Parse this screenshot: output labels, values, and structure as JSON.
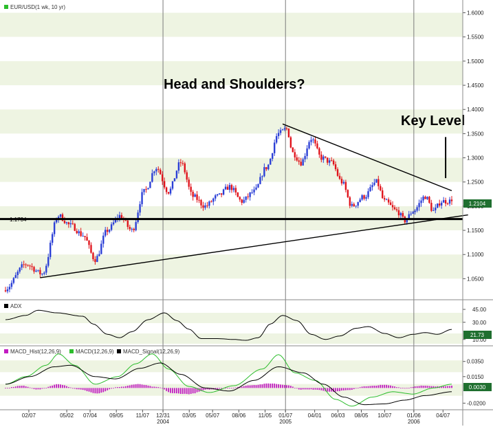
{
  "colors": {
    "up": "#2b3fd6",
    "down": "#e0141c",
    "band_light": "#eef4e2",
    "band_white": "#ffffff",
    "price_label_bg": "#1f6f2f",
    "macd_hist": "#c21bc2",
    "macd_line": "#2cbd2c",
    "macd_signal": "#000000"
  },
  "annotations": {
    "headline": "Head and Shoulders?",
    "key_level": "Key Level",
    "support_level": "1.1734"
  },
  "chart_data": [
    {
      "type": "candlestick",
      "title": "EUR/USD(1 wk, 10 yr)",
      "ylim": [
        1.015,
        1.615
      ],
      "yticks": [
        "1.6000",
        "1.5500",
        "1.5000",
        "1.4500",
        "1.4000",
        "1.3500",
        "1.3000",
        "1.2500",
        "1.2000",
        "1.1500",
        "1.1000",
        "1.0500"
      ],
      "last_value": "1.2104",
      "anchors": [
        {
          "w": 0,
          "v": 1.03
        },
        {
          "w": 10,
          "v": 1.08
        },
        {
          "w": 18,
          "v": 1.06
        },
        {
          "w": 26,
          "v": 1.18
        },
        {
          "w": 32,
          "v": 1.16
        },
        {
          "w": 38,
          "v": 1.14
        },
        {
          "w": 44,
          "v": 1.09
        },
        {
          "w": 50,
          "v": 1.15
        },
        {
          "w": 56,
          "v": 1.18
        },
        {
          "w": 62,
          "v": 1.15
        },
        {
          "w": 68,
          "v": 1.23
        },
        {
          "w": 74,
          "v": 1.28
        },
        {
          "w": 80,
          "v": 1.23
        },
        {
          "w": 86,
          "v": 1.29
        },
        {
          "w": 92,
          "v": 1.22
        },
        {
          "w": 98,
          "v": 1.2
        },
        {
          "w": 104,
          "v": 1.22
        },
        {
          "w": 110,
          "v": 1.24
        },
        {
          "w": 116,
          "v": 1.21
        },
        {
          "w": 122,
          "v": 1.23
        },
        {
          "w": 128,
          "v": 1.28
        },
        {
          "w": 134,
          "v": 1.35
        },
        {
          "w": 138,
          "v": 1.36
        },
        {
          "w": 141,
          "v": 1.31
        },
        {
          "w": 145,
          "v": 1.29
        },
        {
          "w": 150,
          "v": 1.34
        },
        {
          "w": 155,
          "v": 1.3
        },
        {
          "w": 160,
          "v": 1.29
        },
        {
          "w": 165,
          "v": 1.25
        },
        {
          "w": 170,
          "v": 1.2
        },
        {
          "w": 176,
          "v": 1.22
        },
        {
          "w": 182,
          "v": 1.25
        },
        {
          "w": 186,
          "v": 1.21
        },
        {
          "w": 192,
          "v": 1.19
        },
        {
          "w": 196,
          "v": 1.17
        },
        {
          "w": 200,
          "v": 1.19
        },
        {
          "w": 206,
          "v": 1.22
        },
        {
          "w": 210,
          "v": 1.19
        },
        {
          "w": 214,
          "v": 1.21
        },
        {
          "w": 219,
          "v": 1.2104
        }
      ],
      "lines": [
        {
          "name": "neckline",
          "points": [
            [
              -5,
              1.1734
            ],
            [
              230,
              1.1734
            ]
          ]
        },
        {
          "name": "rising-trendline",
          "points": [
            [
              17,
              1.052
            ],
            [
              227,
              1.182
            ]
          ]
        },
        {
          "name": "falling-trendline",
          "points": [
            [
              136,
              1.37
            ],
            [
              219,
              1.232
            ]
          ]
        },
        {
          "name": "key-level-marker",
          "points": [
            [
              216,
              1.258
            ],
            [
              216,
              1.343
            ]
          ]
        }
      ]
    },
    {
      "type": "line",
      "title": "ADX",
      "ylim": [
        5,
        53
      ],
      "yticks": [
        "45.00",
        "30.00",
        "10.00"
      ],
      "last_value": "21.73",
      "anchors": [
        {
          "w": 0,
          "v": 33
        },
        {
          "w": 10,
          "v": 38
        },
        {
          "w": 16,
          "v": 44
        },
        {
          "w": 25,
          "v": 41
        },
        {
          "w": 38,
          "v": 37
        },
        {
          "w": 43,
          "v": 28
        },
        {
          "w": 50,
          "v": 16
        },
        {
          "w": 56,
          "v": 12
        },
        {
          "w": 62,
          "v": 19
        },
        {
          "w": 70,
          "v": 33
        },
        {
          "w": 78,
          "v": 41
        },
        {
          "w": 84,
          "v": 32
        },
        {
          "w": 90,
          "v": 22
        },
        {
          "w": 96,
          "v": 11
        },
        {
          "w": 104,
          "v": 11
        },
        {
          "w": 112,
          "v": 10
        },
        {
          "w": 118,
          "v": 9
        },
        {
          "w": 124,
          "v": 12
        },
        {
          "w": 130,
          "v": 28
        },
        {
          "w": 136,
          "v": 38
        },
        {
          "w": 143,
          "v": 32
        },
        {
          "w": 150,
          "v": 16
        },
        {
          "w": 157,
          "v": 10
        },
        {
          "w": 164,
          "v": 14
        },
        {
          "w": 172,
          "v": 23
        },
        {
          "w": 178,
          "v": 25
        },
        {
          "w": 186,
          "v": 17
        },
        {
          "w": 193,
          "v": 12
        },
        {
          "w": 200,
          "v": 16
        },
        {
          "w": 206,
          "v": 18
        },
        {
          "w": 212,
          "v": 16
        },
        {
          "w": 219,
          "v": 21.73
        }
      ]
    },
    {
      "type": "macd",
      "ylim": [
        -0.026,
        0.052
      ],
      "yticks": [
        "0.0350",
        "0.0150",
        "-0.0200"
      ],
      "last_value": "0.0030",
      "series": [
        {
          "name": "MACD_Hist(12,26,9)",
          "kind": "histogram",
          "anchors": [
            {
              "w": 0,
              "v": 0.0
            },
            {
              "w": 8,
              "v": 0.003
            },
            {
              "w": 16,
              "v": -0.002
            },
            {
              "w": 26,
              "v": 0.005
            },
            {
              "w": 36,
              "v": -0.002
            },
            {
              "w": 45,
              "v": -0.007
            },
            {
              "w": 55,
              "v": 0.001
            },
            {
              "w": 65,
              "v": 0.005
            },
            {
              "w": 75,
              "v": 0.001
            },
            {
              "w": 82,
              "v": -0.007
            },
            {
              "w": 90,
              "v": -0.008
            },
            {
              "w": 100,
              "v": -0.002
            },
            {
              "w": 110,
              "v": 0.0
            },
            {
              "w": 122,
              "v": 0.004
            },
            {
              "w": 130,
              "v": 0.006
            },
            {
              "w": 138,
              "v": 0.004
            },
            {
              "w": 145,
              "v": -0.002
            },
            {
              "w": 152,
              "v": -0.002
            },
            {
              "w": 160,
              "v": -0.005
            },
            {
              "w": 168,
              "v": -0.003
            },
            {
              "w": 176,
              "v": 0.002
            },
            {
              "w": 186,
              "v": 0.004
            },
            {
              "w": 196,
              "v": 0.0
            },
            {
              "w": 204,
              "v": 0.003
            },
            {
              "w": 212,
              "v": 0.002
            },
            {
              "w": 219,
              "v": 0.003
            }
          ]
        },
        {
          "name": "MACD(12,26,9)",
          "kind": "line",
          "anchors": [
            {
              "w": 0,
              "v": 0.005
            },
            {
              "w": 10,
              "v": 0.015
            },
            {
              "w": 20,
              "v": 0.03
            },
            {
              "w": 26,
              "v": 0.045
            },
            {
              "w": 34,
              "v": 0.03
            },
            {
              "w": 44,
              "v": 0.005
            },
            {
              "w": 55,
              "v": 0.015
            },
            {
              "w": 64,
              "v": 0.032
            },
            {
              "w": 72,
              "v": 0.045
            },
            {
              "w": 80,
              "v": 0.025
            },
            {
              "w": 90,
              "v": 0.002
            },
            {
              "w": 100,
              "v": -0.006
            },
            {
              "w": 112,
              "v": 0.003
            },
            {
              "w": 126,
              "v": 0.025
            },
            {
              "w": 134,
              "v": 0.044
            },
            {
              "w": 142,
              "v": 0.02
            },
            {
              "w": 152,
              "v": 0.01
            },
            {
              "w": 162,
              "v": -0.015
            },
            {
              "w": 170,
              "v": -0.024
            },
            {
              "w": 180,
              "v": -0.012
            },
            {
              "w": 190,
              "v": -0.005
            },
            {
              "w": 200,
              "v": -0.008
            },
            {
              "w": 210,
              "v": 0.0
            },
            {
              "w": 219,
              "v": 0.005
            }
          ]
        },
        {
          "name": "MACD_Signal(12,26,9)",
          "kind": "line",
          "anchors": [
            {
              "w": 0,
              "v": 0.005
            },
            {
              "w": 12,
              "v": 0.015
            },
            {
              "w": 24,
              "v": 0.028
            },
            {
              "w": 32,
              "v": 0.03
            },
            {
              "w": 44,
              "v": 0.015
            },
            {
              "w": 54,
              "v": 0.012
            },
            {
              "w": 66,
              "v": 0.026
            },
            {
              "w": 76,
              "v": 0.033
            },
            {
              "w": 86,
              "v": 0.018
            },
            {
              "w": 98,
              "v": 0.0
            },
            {
              "w": 110,
              "v": -0.004
            },
            {
              "w": 122,
              "v": 0.01
            },
            {
              "w": 134,
              "v": 0.028
            },
            {
              "w": 146,
              "v": 0.02
            },
            {
              "w": 156,
              "v": 0.005
            },
            {
              "w": 166,
              "v": -0.012
            },
            {
              "w": 176,
              "v": -0.022
            },
            {
              "w": 186,
              "v": -0.021
            },
            {
              "w": 196,
              "v": -0.016
            },
            {
              "w": 206,
              "v": -0.01
            },
            {
              "w": 219,
              "v": -0.005
            }
          ]
        }
      ]
    }
  ],
  "x_axis": {
    "weeks_total": 220,
    "ticks": [
      {
        "w": 8,
        "label": "02/07"
      },
      {
        "w": 21,
        "label": "05/02"
      },
      {
        "w": 29,
        "label": "07/04"
      },
      {
        "w": 38,
        "label": "09/05"
      },
      {
        "w": 47,
        "label": "11/07"
      },
      {
        "w": 54,
        "label": "12/31",
        "sub": "2004"
      },
      {
        "w": 63,
        "label": "03/05"
      },
      {
        "w": 71,
        "label": "05/07"
      },
      {
        "w": 80,
        "label": "08/06"
      },
      {
        "w": 89,
        "label": "11/05"
      },
      {
        "w": 96,
        "label": "01/07",
        "sub": "2005"
      },
      {
        "w": 106,
        "label": "04/01"
      },
      {
        "w": 114,
        "label": "06/03"
      },
      {
        "w": 122,
        "label": "08/05"
      },
      {
        "w": 130,
        "label": "10/07"
      },
      {
        "w": 140,
        "label": "01/06",
        "sub": "2006"
      },
      {
        "w": 150,
        "label": "04/07"
      }
    ],
    "year_lines": [
      54,
      96,
      140
    ]
  }
}
